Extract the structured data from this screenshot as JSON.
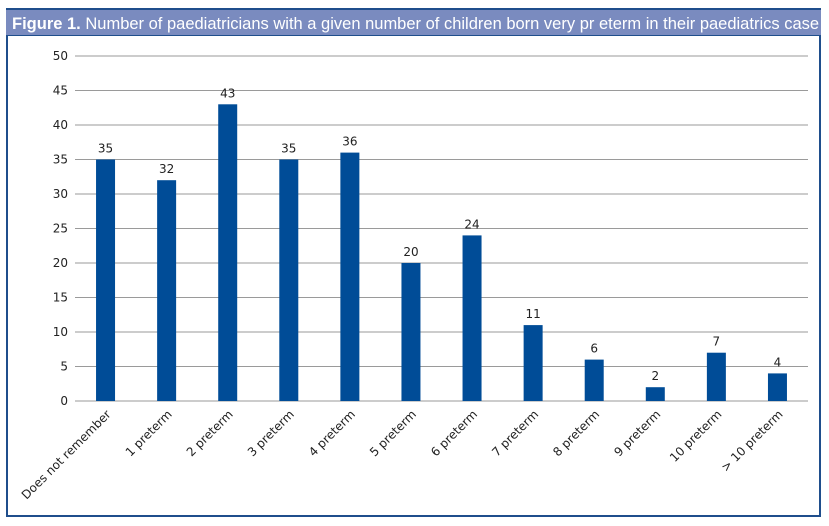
{
  "chart_data": {
    "type": "bar",
    "title_prefix": "Figure 1.",
    "title": "Number of paediatricians with a given number of children born very pr eterm in their paediatrics case load",
    "xlabel": "",
    "ylabel": "",
    "categories": [
      "Does not remember",
      "1 preterm",
      "2 preterm",
      "3 preterm",
      "4 preterm",
      "5 preterm",
      "6 preterm",
      "7 preterm",
      "8 preterm",
      "9 preterm",
      "10 preterm",
      "> 10 preterm"
    ],
    "values": [
      35,
      32,
      43,
      35,
      36,
      20,
      24,
      11,
      6,
      2,
      7,
      4
    ],
    "ylim": [
      0,
      50
    ],
    "yticks": [
      0,
      5,
      10,
      15,
      20,
      25,
      30,
      35,
      40,
      45,
      50
    ],
    "grid": true,
    "data_labels": true,
    "colors": {
      "bar": "#004c97",
      "header": "#7a8bbf",
      "border": "#1f4e8c",
      "grid": "#9a9a9a"
    }
  }
}
